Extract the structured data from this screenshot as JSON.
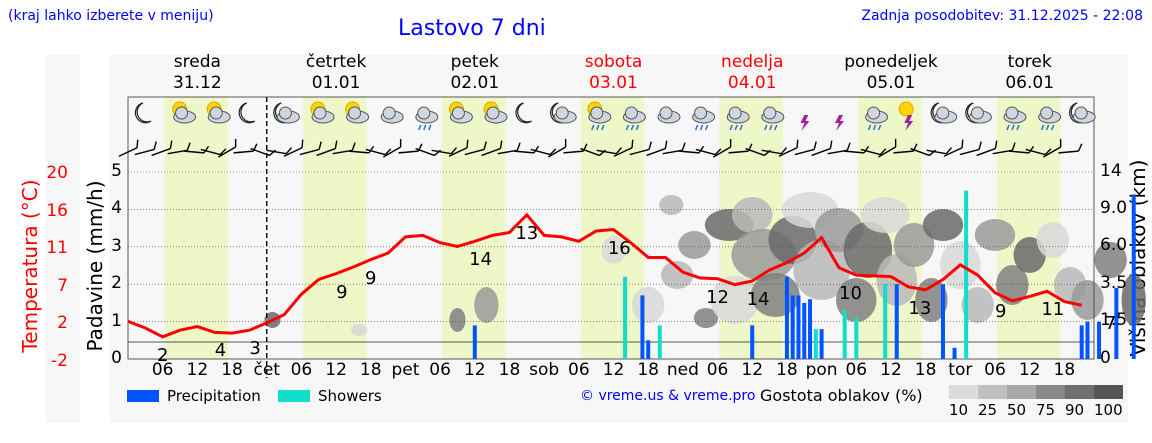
{
  "header": {
    "note": "(kraj lahko izberete v meniju)",
    "title": "Lastovo 7 dni",
    "updated": "Zadnja posodobitev: 31.12.2025 - 22:08"
  },
  "days": [
    {
      "name": "sreda",
      "date": "31.12",
      "color": "#000000"
    },
    {
      "name": "četrtek",
      "date": "01.01",
      "color": "#000000"
    },
    {
      "name": "petek",
      "date": "02.01",
      "color": "#000000"
    },
    {
      "name": "sobota",
      "date": "03.01",
      "color": "#ff0000"
    },
    {
      "name": "nedelja",
      "date": "04.01",
      "color": "#ff0000"
    },
    {
      "name": "ponedeljek",
      "date": "05.01",
      "color": "#000000"
    },
    {
      "name": "torek",
      "date": "06.01",
      "color": "#000000"
    }
  ],
  "icons": [
    "moon-icon",
    "sun-cloud-icon",
    "sun-cloud-icon",
    "moon-icon",
    "moon-cloud-icon",
    "sun-cloud-icon",
    "sun-cloud-icon",
    "cloud-icon",
    "cloud-rain-icon",
    "sun-cloud-icon",
    "sun-cloud-icon",
    "moon-icon",
    "moon-cloud-icon",
    "sun-cloud-rain-icon",
    "cloud-rain-icon",
    "cloud-icon",
    "cloud-rain-icon",
    "cloud-rain-icon",
    "cloud-rain-icon",
    "thunder-icon",
    "thunder-icon",
    "cloud-rain-icon",
    "sun-thunder-icon",
    "moon-cloud-icon",
    "moon-cloud-icon",
    "cloud-rain-icon",
    "cloud-rain-icon",
    "moon-cloud-icon"
  ],
  "colors": {
    "temperature": "#ff0000",
    "precipitation": "#0055ff",
    "showers": "#11ddcc",
    "daylight": "#eef7c8",
    "link": "#0000ff"
  },
  "chart_data": {
    "type": "line",
    "title": "Lastovo 7 dni",
    "x_hours_from_start": [
      0,
      3,
      6,
      9,
      12,
      15,
      18,
      21,
      24,
      27,
      30,
      33,
      36,
      39,
      42,
      45,
      48,
      51,
      54,
      57,
      60,
      63,
      66,
      69,
      72,
      75,
      78,
      81,
      84,
      87,
      90,
      93,
      96,
      99,
      102,
      105,
      108,
      111,
      114,
      117,
      120,
      123,
      126,
      129,
      132,
      135,
      138,
      141,
      144,
      147,
      150,
      153,
      156,
      159,
      162,
      165
    ],
    "x_start": "31.12 00:00",
    "x_tick_labels": [
      "06",
      "12",
      "18",
      "čet",
      "06",
      "12",
      "18",
      "pet",
      "06",
      "12",
      "18",
      "sob",
      "06",
      "12",
      "18",
      "ned",
      "06",
      "12",
      "18",
      "pon",
      "06",
      "12",
      "18",
      "tor",
      "06",
      "12",
      "18"
    ],
    "series": [
      {
        "name": "Temperatura (°C)",
        "axis": "left",
        "values": [
          4.3,
          3.4,
          2.2,
          3.1,
          3.6,
          2.8,
          2.7,
          3.1,
          4.1,
          5.2,
          8.0,
          10.0,
          10.8,
          11.7,
          12.7,
          13.6,
          15.8,
          16.0,
          15.0,
          14.5,
          15.2,
          16.0,
          16.4,
          18.8,
          16.0,
          15.8,
          15.2,
          16.6,
          16.8,
          15.0,
          13.0,
          13.0,
          11.0,
          10.2,
          10.1,
          9.3,
          9.8,
          11.3,
          12.3,
          13.6,
          15.7,
          11.6,
          10.6,
          10.5,
          10.4,
          9.0,
          8.6,
          10.0,
          12.0,
          10.6,
          8.2,
          7.1,
          7.7,
          8.4,
          7.0,
          6.5
        ]
      }
    ],
    "temp_labels": [
      {
        "h": 6,
        "text": "2"
      },
      {
        "h": 16,
        "text": "4"
      },
      {
        "h": 22,
        "text": "3"
      },
      {
        "h": 37,
        "text": "9"
      },
      {
        "h": 42,
        "text": "9"
      },
      {
        "h": 61,
        "text": "14"
      },
      {
        "h": 69,
        "text": "13"
      },
      {
        "h": 85,
        "text": "16"
      },
      {
        "h": 102,
        "text": "12"
      },
      {
        "h": 109,
        "text": "14"
      },
      {
        "h": 125,
        "text": "10"
      },
      {
        "h": 137,
        "text": "13"
      },
      {
        "h": 151,
        "text": "9"
      },
      {
        "h": 160,
        "text": "11"
      },
      {
        "h": 170,
        "text": "7"
      }
    ],
    "precipitation": [
      {
        "h": 60,
        "v": 0.9
      },
      {
        "h": 89,
        "v": 1.7
      },
      {
        "h": 90,
        "v": 0.5
      },
      {
        "h": 108,
        "v": 0.9
      },
      {
        "h": 114,
        "v": 2.2
      },
      {
        "h": 115,
        "v": 1.7
      },
      {
        "h": 116,
        "v": 1.7
      },
      {
        "h": 117,
        "v": 1.5
      },
      {
        "h": 118,
        "v": 1.6
      },
      {
        "h": 120,
        "v": 0.8
      },
      {
        "h": 133,
        "v": 2.0
      },
      {
        "h": 141,
        "v": 2.0
      },
      {
        "h": 143,
        "v": 0.3
      },
      {
        "h": 165,
        "v": 0.9
      },
      {
        "h": 166,
        "v": 1.0
      },
      {
        "h": 168,
        "v": 1.0
      },
      {
        "h": 171,
        "v": 1.9
      },
      {
        "h": 174,
        "v": 4.4
      }
    ],
    "showers": [
      {
        "h": 86,
        "v": 2.2
      },
      {
        "h": 92,
        "v": 0.9
      },
      {
        "h": 119,
        "v": 0.8
      },
      {
        "h": 124,
        "v": 1.3
      },
      {
        "h": 126,
        "v": 1.1
      },
      {
        "h": 131,
        "v": 2.0
      },
      {
        "h": 145,
        "v": 4.5
      }
    ],
    "left_temp_ticks": [
      "20",
      "16",
      "11",
      "7",
      "2",
      "-2"
    ],
    "precip_ticks": [
      "0",
      "1",
      "2",
      "3",
      "4",
      "5"
    ],
    "precip_ylim": [
      0,
      5
    ],
    "cloud_ticks": [
      "0",
      "1.5",
      "3.5",
      "6.0",
      "9.0",
      "14"
    ],
    "xlabel": "",
    "ylabel_left_outer": "Temperatura (°C)",
    "ylabel_left_inner": "Padavine (mm/h)",
    "ylabel_right": "Višina oblakov (km)"
  },
  "legend": {
    "precipitation": "Precipitation",
    "showers": "Showers",
    "copyright": "© vreme.us & vreme.pro",
    "density_title": "Gostota oblakov (%)",
    "density_levels": [
      "10",
      "25",
      "50",
      "75",
      "90",
      "100"
    ],
    "density_colors": [
      "#dcdcdc",
      "#c0c0c0",
      "#a8a8a8",
      "#8a8a8a",
      "#707070",
      "#555555"
    ]
  }
}
